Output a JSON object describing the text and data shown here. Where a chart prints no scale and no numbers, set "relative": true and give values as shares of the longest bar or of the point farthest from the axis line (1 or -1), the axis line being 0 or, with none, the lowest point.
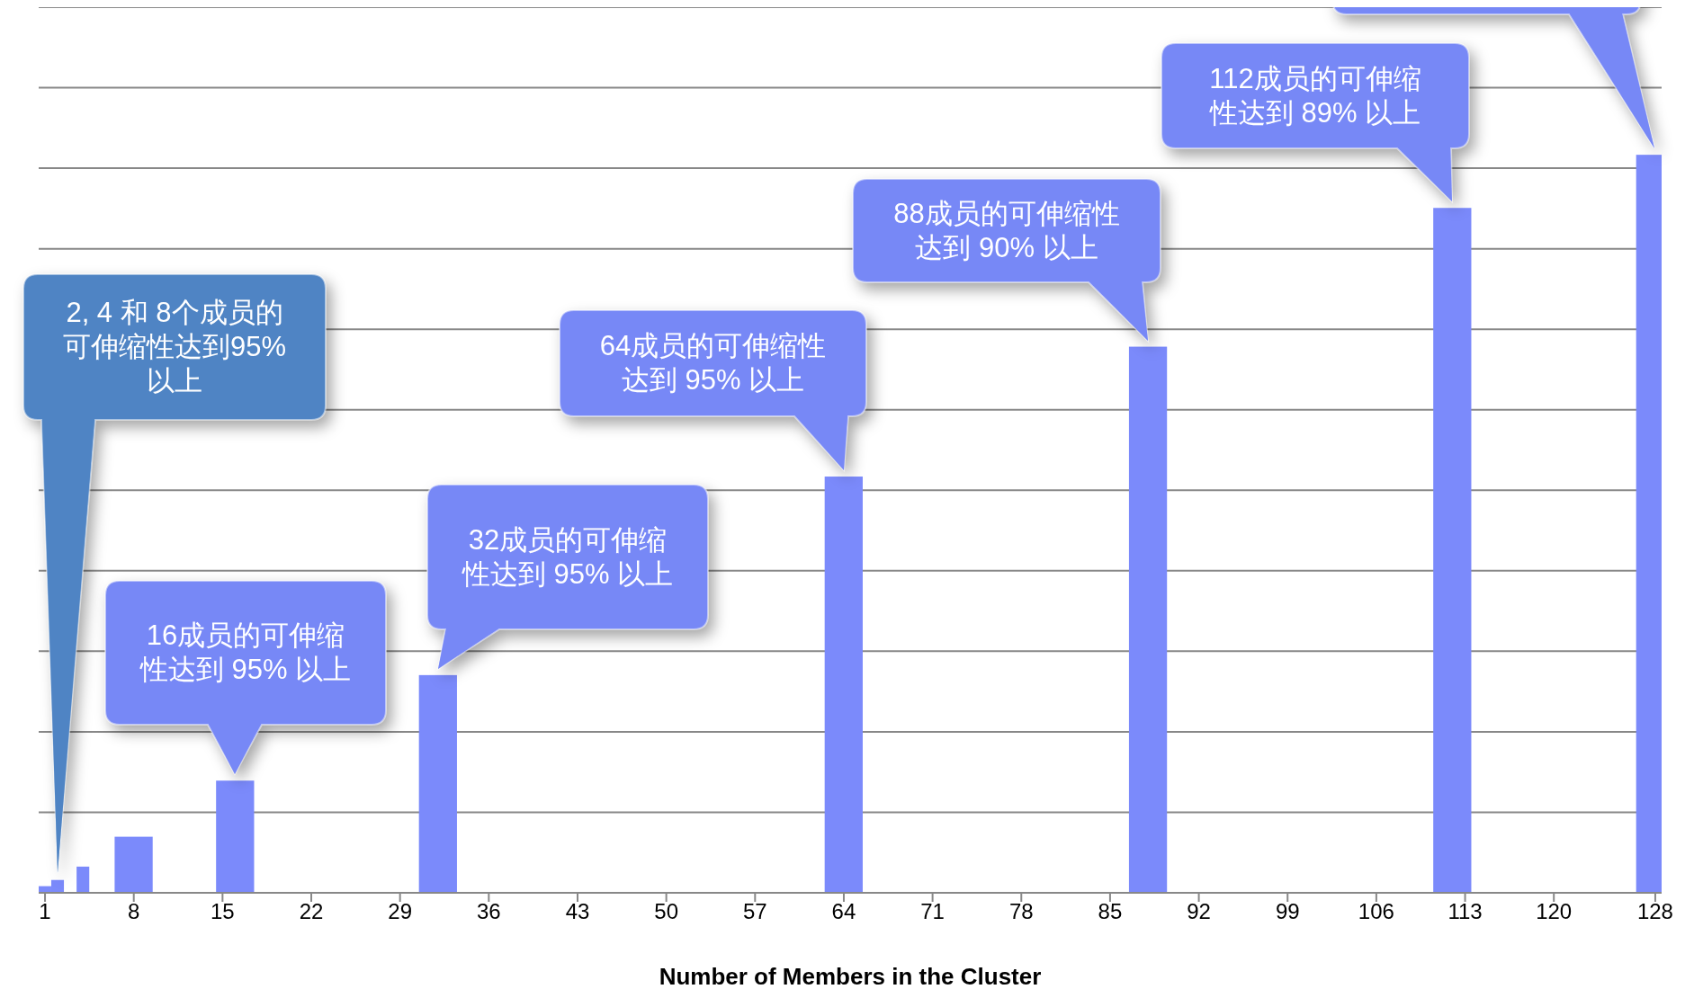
{
  "chart_data": {
    "type": "bar",
    "relative": true,
    "xlabel": "Number of Members in the Cluster",
    "x": [
      1,
      2,
      4,
      8,
      16,
      32,
      64,
      88,
      112,
      128
    ],
    "values": [
      0.009,
      0.0174,
      0.0355,
      0.076,
      0.152,
      0.295,
      0.564,
      0.74,
      0.928,
      1
    ],
    "color": "#7b8afb",
    "xlim": [
      0.5,
      128.5
    ],
    "xticks": [
      1,
      8,
      15,
      22,
      29,
      36,
      43,
      50,
      57,
      64,
      71,
      78,
      85,
      92,
      99,
      106,
      113,
      120,
      128
    ],
    "grid": "y",
    "annotations": [
      "2, 4 和 8个成员的可伸缩性达到95% 以上",
      "16成员的可伸缩性达到 95% 以上",
      "32成员的可伸缩性达到 95% 以上",
      "64成员的可伸缩性达到 95% 以上",
      "88成员的可伸缩性达到 90% 以上",
      "112成员的可伸缩性达到 89% 以上"
    ]
  }
}
